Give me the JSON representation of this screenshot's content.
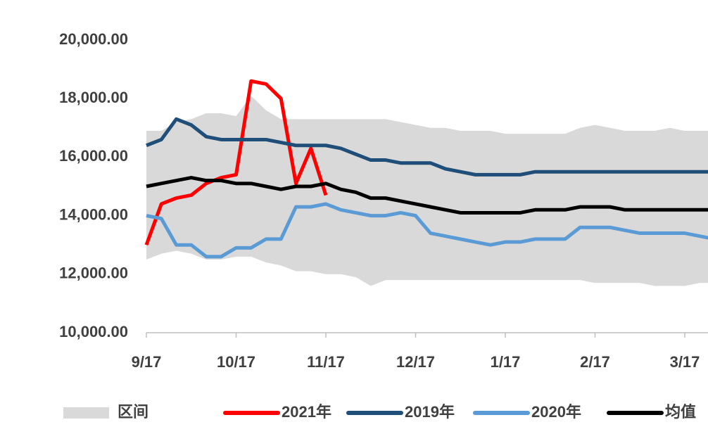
{
  "chart_data": {
    "type": "line",
    "categories": [
      "9/17",
      null,
      null,
      null,
      null,
      null,
      "10/17",
      null,
      null,
      null,
      null,
      null,
      "11/17",
      null,
      null,
      null,
      null,
      null,
      "12/17",
      null,
      null,
      null,
      null,
      null,
      "1/17",
      null,
      null,
      null,
      null,
      null,
      "2/17",
      null,
      null,
      null,
      null,
      null,
      "3/17",
      null,
      null
    ],
    "ylim": [
      10000,
      20000
    ],
    "yticks": [
      {
        "value": 10000,
        "label": "10,000.00"
      },
      {
        "value": 12000,
        "label": "12,000.00"
      },
      {
        "value": 14000,
        "label": "14,000.00"
      },
      {
        "value": 16000,
        "label": "16,000.00"
      },
      {
        "value": 18000,
        "label": "18,000.00"
      },
      {
        "value": 20000,
        "label": "20,000.00"
      }
    ],
    "band": {
      "name": "区间",
      "color": "#d9d9d9",
      "high": [
        16900,
        16900,
        17200,
        17300,
        17500,
        17500,
        17400,
        18100,
        17600,
        17300,
        17300,
        17300,
        17300,
        17300,
        17300,
        17300,
        17300,
        17200,
        17100,
        17000,
        17000,
        16900,
        16900,
        16900,
        16800,
        16800,
        16800,
        16800,
        16800,
        17000,
        17100,
        17000,
        16900,
        16900,
        16900,
        17000,
        16900,
        16900,
        16900
      ],
      "low": [
        12500,
        12700,
        12800,
        12700,
        12500,
        12500,
        12600,
        12600,
        12400,
        12300,
        12100,
        12100,
        12000,
        12000,
        11900,
        11600,
        11800,
        11800,
        11800,
        11800,
        11800,
        11800,
        11800,
        11800,
        11800,
        11800,
        11800,
        11800,
        11800,
        11800,
        11700,
        11700,
        11700,
        11700,
        11600,
        11600,
        11600,
        11700,
        11700
      ]
    },
    "series": [
      {
        "name": "2021年",
        "color": "#ff0000",
        "values": [
          13000,
          14400,
          14600,
          14700,
          15100,
          15300,
          15400,
          18600,
          18500,
          18000,
          15100,
          16300,
          14700,
          null,
          null,
          null,
          null,
          null,
          null,
          null,
          null,
          null,
          null,
          null,
          null,
          null,
          null,
          null,
          null,
          null,
          null,
          null,
          null,
          null,
          null,
          null,
          null,
          null,
          null
        ]
      },
      {
        "name": "2019年",
        "color": "#1f4e79",
        "values": [
          16400,
          16600,
          17300,
          17100,
          16700,
          16600,
          16600,
          16600,
          16600,
          16500,
          16400,
          16400,
          16400,
          16300,
          16100,
          15900,
          15900,
          15800,
          15800,
          15800,
          15600,
          15500,
          15400,
          15400,
          15400,
          15400,
          15500,
          15500,
          15500,
          15500,
          15500,
          15500,
          15500,
          15500,
          15500,
          15500,
          15500,
          15500,
          15500
        ]
      },
      {
        "name": "2020年",
        "color": "#5b9bd5",
        "values": [
          14000,
          13900,
          13000,
          13000,
          12600,
          12600,
          12900,
          12900,
          13200,
          13200,
          14300,
          14300,
          14400,
          14200,
          14100,
          14000,
          14000,
          14100,
          14000,
          13400,
          13300,
          13200,
          13100,
          13000,
          13100,
          13100,
          13200,
          13200,
          13200,
          13600,
          13600,
          13600,
          13500,
          13400,
          13400,
          13400,
          13400,
          13300,
          13200
        ]
      },
      {
        "name": "均值",
        "color": "#000000",
        "values": [
          15000,
          15100,
          15200,
          15300,
          15200,
          15200,
          15100,
          15100,
          15000,
          14900,
          15000,
          15000,
          15100,
          14900,
          14800,
          14600,
          14600,
          14500,
          14400,
          14300,
          14200,
          14100,
          14100,
          14100,
          14100,
          14100,
          14200,
          14200,
          14200,
          14300,
          14300,
          14300,
          14200,
          14200,
          14200,
          14200,
          14200,
          14200,
          14200
        ]
      }
    ]
  }
}
